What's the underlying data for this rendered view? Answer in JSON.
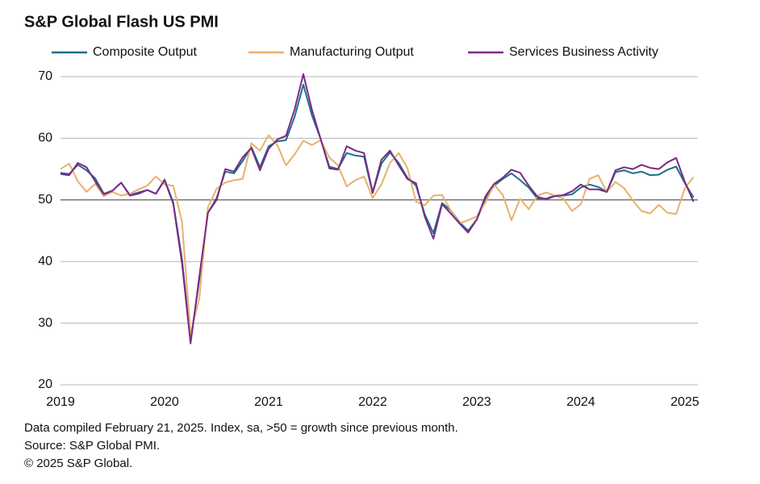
{
  "chart_data": {
    "type": "line",
    "title": "S&P Global Flash US PMI",
    "categories": [
      "2019",
      null,
      null,
      null,
      null,
      null,
      null,
      null,
      null,
      null,
      null,
      null,
      "2020",
      null,
      null,
      null,
      null,
      null,
      null,
      null,
      null,
      null,
      null,
      null,
      "2021",
      null,
      null,
      null,
      null,
      null,
      null,
      null,
      null,
      null,
      null,
      null,
      "2022",
      null,
      null,
      null,
      null,
      null,
      null,
      null,
      null,
      null,
      null,
      null,
      "2023",
      null,
      null,
      null,
      null,
      null,
      null,
      null,
      null,
      null,
      null,
      null,
      "2024",
      null,
      null,
      null,
      null,
      null,
      null,
      null,
      null,
      null,
      null,
      null,
      "2025",
      null
    ],
    "series": [
      {
        "name": "Composite Output",
        "color": "#1d6f8a",
        "values": [
          54.4,
          54.2,
          55.7,
          54.8,
          53.5,
          51.0,
          51.5,
          52.8,
          50.8,
          51.2,
          51.6,
          51.0,
          53.3,
          49.6,
          40.5,
          27.0,
          37.0,
          47.9,
          50.3,
          54.6,
          54.3,
          56.3,
          58.6,
          55.3,
          58.7,
          59.5,
          59.7,
          63.5,
          68.7,
          63.7,
          59.9,
          55.4,
          55.0,
          57.6,
          57.2,
          57.0,
          51.1,
          55.9,
          57.7,
          56.0,
          53.6,
          52.3,
          47.7,
          44.6,
          49.5,
          48.3,
          46.4,
          45.0,
          46.8,
          50.1,
          52.3,
          53.4,
          54.3,
          53.2,
          52.0,
          50.2,
          50.2,
          50.7,
          50.7,
          50.9,
          52.0,
          52.5,
          52.1,
          51.3,
          54.5,
          54.8,
          54.3,
          54.6,
          54.0,
          54.1,
          54.9,
          55.4,
          52.7,
          50.4
        ]
      },
      {
        "name": "Manufacturing Output",
        "color": "#e8b06e",
        "values": [
          55.0,
          55.9,
          53.0,
          51.3,
          52.6,
          50.6,
          51.3,
          50.7,
          51.0,
          51.7,
          52.3,
          53.8,
          52.5,
          52.3,
          46.5,
          28.3,
          34.0,
          48.8,
          51.8,
          52.8,
          53.2,
          53.4,
          59.2,
          58.0,
          60.5,
          58.9,
          55.6,
          57.4,
          59.6,
          58.9,
          59.7,
          56.9,
          55.6,
          52.2,
          53.2,
          53.8,
          50.3,
          52.5,
          56.0,
          57.6,
          55.2,
          49.7,
          49.1,
          50.7,
          50.8,
          48.3,
          46.2,
          46.7,
          47.3,
          49.6,
          52.5,
          50.8,
          46.7,
          50.2,
          48.5,
          50.7,
          51.2,
          50.7,
          50.2,
          48.2,
          49.3,
          53.4,
          54.0,
          51.3,
          52.9,
          51.9,
          49.9,
          48.2,
          47.8,
          49.2,
          47.9,
          47.7,
          51.9,
          53.7
        ]
      },
      {
        "name": "Services Business Activity",
        "color": "#7b2a86",
        "values": [
          54.2,
          54.0,
          56.0,
          55.3,
          53.0,
          50.9,
          51.5,
          52.8,
          50.7,
          51.0,
          51.6,
          51.0,
          53.2,
          49.4,
          39.8,
          26.7,
          37.5,
          47.9,
          50.0,
          55.0,
          54.6,
          56.9,
          58.4,
          54.8,
          58.3,
          59.8,
          60.4,
          64.7,
          70.4,
          64.6,
          59.9,
          55.1,
          54.9,
          58.7,
          58.0,
          57.6,
          51.2,
          56.5,
          58.0,
          55.6,
          53.4,
          52.7,
          47.3,
          43.7,
          49.3,
          47.8,
          46.2,
          44.7,
          46.8,
          50.6,
          52.6,
          53.6,
          54.9,
          54.4,
          52.3,
          50.5,
          50.1,
          50.6,
          50.8,
          51.4,
          52.5,
          51.7,
          51.7,
          51.3,
          54.8,
          55.3,
          55.0,
          55.7,
          55.2,
          55.0,
          56.1,
          56.8,
          52.9,
          49.7
        ]
      }
    ],
    "ylim": [
      20,
      70
    ],
    "yticks": [
      20,
      30,
      40,
      50,
      60,
      70
    ],
    "grid": true,
    "reference_line": 50,
    "legend": "top",
    "notes": [
      "Data compiled February 21, 2025. Index, sa, >50 = growth since previous month.",
      "Source: S&P Global PMI.",
      "© 2025 S&P Global."
    ]
  }
}
